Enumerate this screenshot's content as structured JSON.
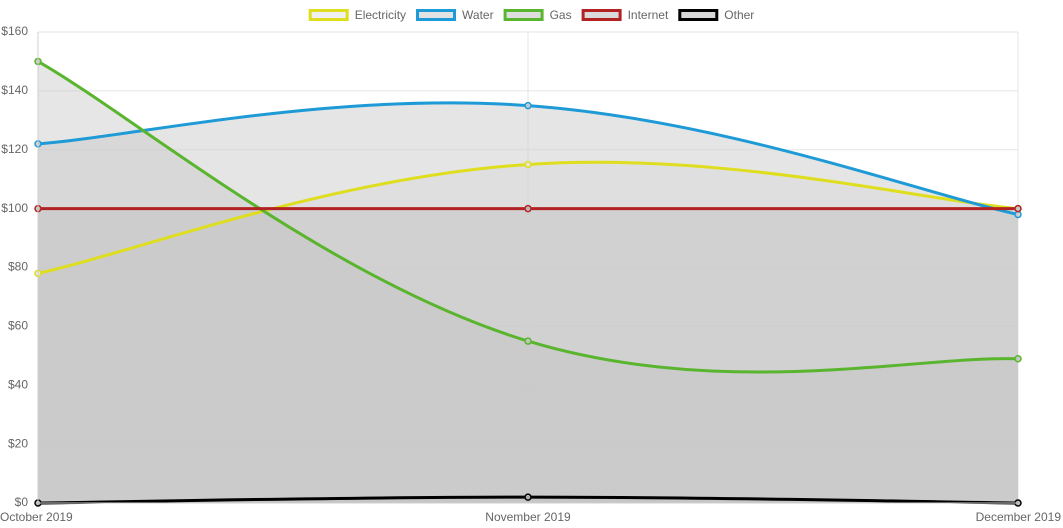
{
  "chart_data": {
    "type": "area",
    "categories": [
      "October 2019",
      "November 2019",
      "December 2019"
    ],
    "y_tick_labels": [
      "$0",
      "$20",
      "$40",
      "$60",
      "$80",
      "$100",
      "$120",
      "$140",
      "$160"
    ],
    "ylim": [
      0,
      160
    ],
    "grid": true,
    "legend_position": "top-center",
    "series": [
      {
        "name": "Electricity",
        "values": [
          78,
          115,
          100
        ],
        "color": "#dede1e",
        "fill": "#e6e6e6",
        "fill_opacity": 0.55
      },
      {
        "name": "Water",
        "values": [
          122,
          135,
          98
        ],
        "color": "#1e9ad6",
        "fill": "#d0d0d0",
        "fill_opacity": 0.55
      },
      {
        "name": "Gas",
        "values": [
          150,
          55,
          49
        ],
        "color": "#5ab52e",
        "fill": "#c8c8c8",
        "fill_opacity": 0.45
      },
      {
        "name": "Internet",
        "values": [
          100,
          100,
          100
        ],
        "color": "#b22222",
        "fill": "#c2c2c2",
        "fill_opacity": 0.45
      },
      {
        "name": "Other",
        "values": [
          0,
          2,
          0
        ],
        "color": "#000000",
        "fill": "#bdbdbd",
        "fill_opacity": 0.3
      }
    ]
  }
}
